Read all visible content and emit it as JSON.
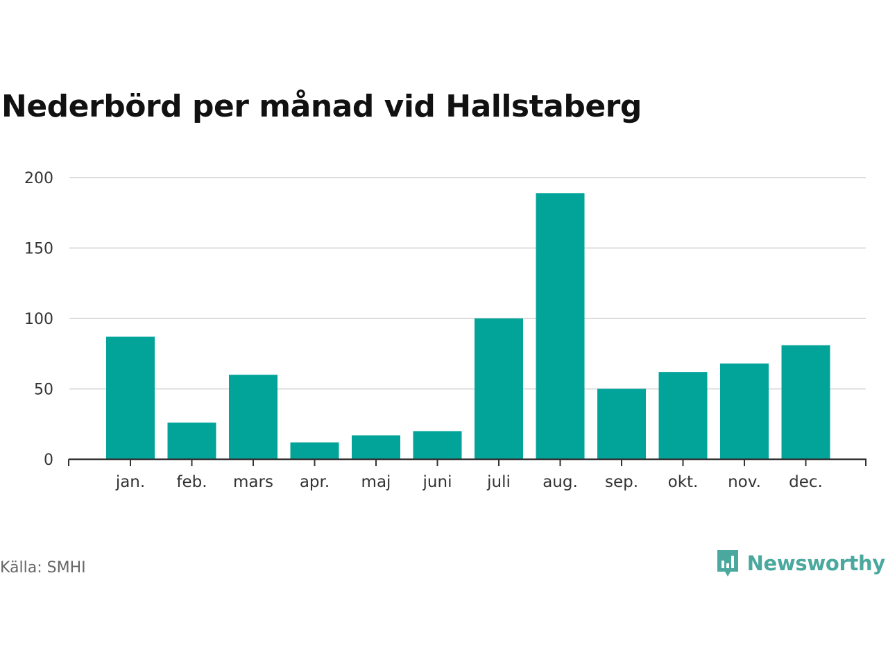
{
  "title": "Nederbörd per månad vid Hallstaberg",
  "source": "Källa: SMHI",
  "brand": {
    "name": "Newsworthy",
    "icon": "newsworthy-logo-icon"
  },
  "colors": {
    "bar": "#02a49a",
    "grid": "#dddddd",
    "axis": "#333333",
    "brand": "#4aa89e"
  },
  "chart_data": {
    "type": "bar",
    "title": "Nederbörd per månad vid Hallstaberg",
    "xlabel": "",
    "ylabel": "",
    "categories": [
      "jan.",
      "feb.",
      "mars",
      "apr.",
      "maj",
      "juni",
      "juli",
      "aug.",
      "sep.",
      "okt.",
      "nov.",
      "dec."
    ],
    "values": [
      87,
      26,
      60,
      12,
      17,
      20,
      100,
      189,
      50,
      62,
      68,
      81
    ],
    "ylim": [
      0,
      200
    ],
    "yticks": [
      0,
      50,
      100,
      150,
      200
    ],
    "grid": true,
    "legend": "none"
  }
}
